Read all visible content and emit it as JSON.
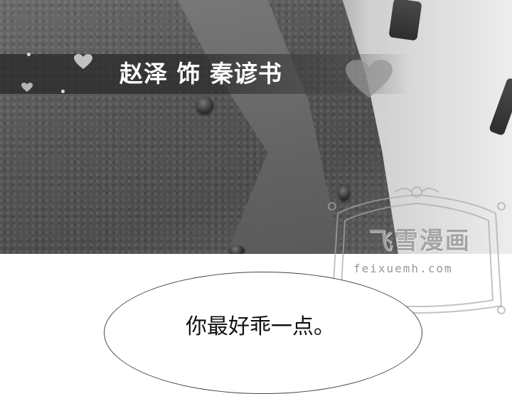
{
  "banner": {
    "cast_credit": "赵泽 饰 秦谚书"
  },
  "speech": {
    "line": "你最好乖一点。"
  },
  "watermark": {
    "title": "飞雪漫画",
    "url": "feixuemh.com"
  }
}
